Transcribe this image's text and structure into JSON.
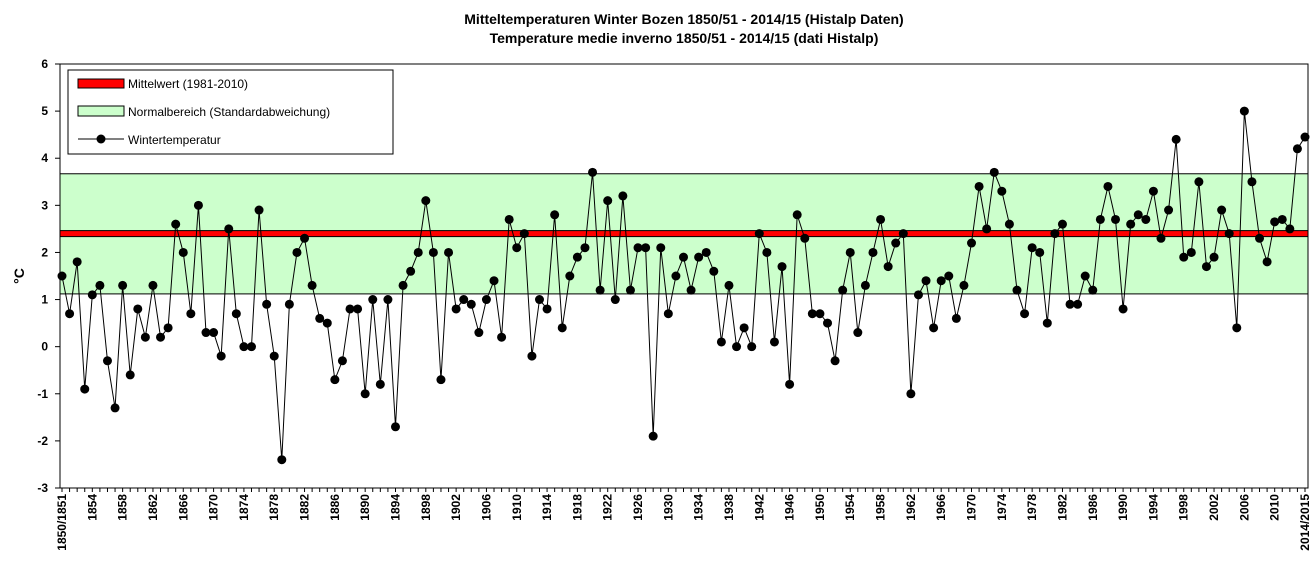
{
  "chart_data": {
    "type": "line",
    "title": "Mitteltemperaturen Winter Bozen 1850/51 - 2014/15 (Histalp Daten)",
    "subtitle": "Temperature medie inverno 1850/51 - 2014/15 (dati Histalp)",
    "y_label": "°C",
    "ylim": [
      -3,
      6
    ],
    "yticks": [
      -3,
      -2,
      -1,
      0,
      1,
      2,
      3,
      4,
      5,
      6
    ],
    "mean": {
      "name": "Mittelwert (1981-2010)",
      "value": 2.4,
      "color": "#ff0000"
    },
    "normal_range": {
      "name": "Normalbereich (Standardabweichung)",
      "low": 1.12,
      "high": 3.67,
      "color": "#ccffcc"
    },
    "legend": "top-left",
    "categories": [
      "1850/1851",
      null,
      null,
      null,
      "1854",
      null,
      null,
      null,
      "1858",
      null,
      null,
      null,
      "1862",
      null,
      null,
      null,
      "1866",
      null,
      null,
      null,
      "1870",
      null,
      null,
      null,
      "1874",
      null,
      null,
      null,
      "1878",
      null,
      null,
      null,
      "1882",
      null,
      null,
      null,
      "1886",
      null,
      null,
      null,
      "1890",
      null,
      null,
      null,
      "1894",
      null,
      null,
      null,
      "1898",
      null,
      null,
      null,
      "1902",
      null,
      null,
      null,
      "1906",
      null,
      null,
      null,
      "1910",
      null,
      null,
      null,
      "1914",
      null,
      null,
      null,
      "1918",
      null,
      null,
      null,
      "1922",
      null,
      null,
      null,
      "1926",
      null,
      null,
      null,
      "1930",
      null,
      null,
      null,
      "1934",
      null,
      null,
      null,
      "1938",
      null,
      null,
      null,
      "1942",
      null,
      null,
      null,
      "1946",
      null,
      null,
      null,
      "1950",
      null,
      null,
      null,
      "1954",
      null,
      null,
      null,
      "1958",
      null,
      null,
      null,
      "1962",
      null,
      null,
      null,
      "1966",
      null,
      null,
      null,
      "1970",
      null,
      null,
      null,
      "1974",
      null,
      null,
      null,
      "1978",
      null,
      null,
      null,
      "1982",
      null,
      null,
      null,
      "1986",
      null,
      null,
      null,
      "1990",
      null,
      null,
      null,
      "1994",
      null,
      null,
      null,
      "1998",
      null,
      null,
      null,
      "2002",
      null,
      null,
      null,
      "2006",
      null,
      null,
      null,
      "2010",
      null,
      null,
      null,
      "2014/2015"
    ],
    "series": [
      {
        "name": "Wintertemperatur",
        "color": "#000000",
        "values": [
          1.5,
          0.7,
          1.8,
          -0.9,
          1.1,
          1.3,
          -0.3,
          -1.3,
          1.3,
          -0.6,
          0.8,
          0.2,
          1.3,
          0.2,
          0.4,
          2.6,
          2.0,
          0.7,
          3.0,
          0.3,
          0.3,
          -0.2,
          2.5,
          0.7,
          0.0,
          0.0,
          2.9,
          0.9,
          -0.2,
          -2.4,
          0.9,
          2.0,
          2.3,
          1.3,
          0.6,
          0.5,
          -0.7,
          -0.3,
          0.8,
          0.8,
          -1.0,
          1.0,
          -0.8,
          1.0,
          -1.7,
          1.3,
          1.6,
          2.0,
          3.1,
          2.0,
          -0.7,
          2.0,
          0.8,
          1.0,
          0.9,
          0.3,
          1.0,
          1.4,
          0.2,
          2.7,
          2.1,
          2.4,
          -0.2,
          1.0,
          0.8,
          2.8,
          0.4,
          1.5,
          1.9,
          2.1,
          3.7,
          1.2,
          3.1,
          1.0,
          3.2,
          1.2,
          2.1,
          2.1,
          -1.9,
          2.1,
          0.7,
          1.5,
          1.9,
          1.2,
          1.9,
          2.0,
          1.6,
          0.1,
          1.3,
          0.0,
          0.4,
          0.0,
          2.4,
          2.0,
          0.1,
          1.7,
          -0.8,
          2.8,
          2.3,
          0.7,
          0.7,
          0.5,
          -0.3,
          1.2,
          2.0,
          0.3,
          1.3,
          2.0,
          2.7,
          1.7,
          2.2,
          2.4,
          -1.0,
          1.1,
          1.4,
          0.4,
          1.4,
          1.5,
          0.6,
          1.3,
          2.2,
          3.4,
          2.5,
          3.7,
          3.3,
          2.6,
          1.2,
          0.7,
          2.1,
          2.0,
          0.5,
          2.4,
          2.6,
          0.9,
          0.9,
          1.5,
          1.2,
          2.7,
          3.4,
          2.7,
          0.8,
          2.6,
          2.8,
          2.7,
          3.3,
          2.3,
          2.9,
          4.4,
          1.9,
          2.0,
          3.5,
          1.7,
          1.9,
          2.9,
          2.4,
          0.4,
          5.0,
          3.5,
          2.3,
          1.8,
          2.65,
          2.7,
          2.5,
          4.2,
          4.45
        ]
      }
    ]
  }
}
